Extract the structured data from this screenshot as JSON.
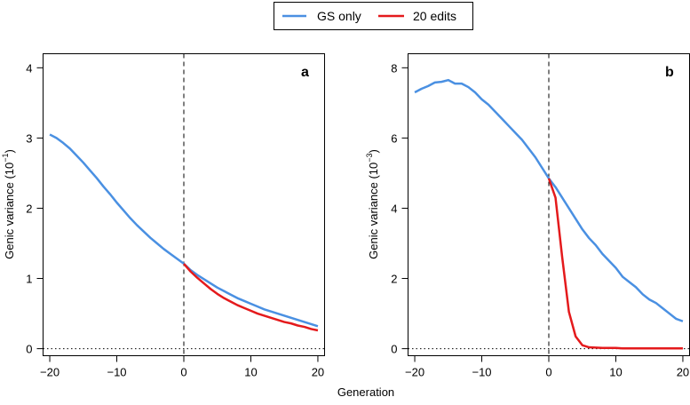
{
  "legend": {
    "entries": [
      {
        "label": "GS only",
        "color": "#4a90e2"
      },
      {
        "label": "20 edits",
        "color": "#e41a1c"
      }
    ]
  },
  "shared_xlabel": "Generation",
  "chart_data": [
    {
      "type": "line",
      "panel": "a",
      "ylabel": "Genic variance (10",
      "ylabel_exp": "−1",
      "ylabel_close": ")",
      "xlim": [
        -21,
        21
      ],
      "ylim": [
        -0.1,
        4.2
      ],
      "xticks": [
        -20,
        -10,
        0,
        10,
        20
      ],
      "xtick_labels": [
        "−20",
        "−10",
        "0",
        "10",
        "20"
      ],
      "yticks": [
        0,
        1,
        2,
        3,
        4
      ],
      "ytick_labels": [
        "0",
        "1",
        "2",
        "3",
        "4"
      ],
      "vline_x": 0,
      "hline_y": 0,
      "series": [
        {
          "name": "GS only",
          "color": "#4a90e2",
          "x": [
            -20,
            -19,
            -18,
            -17,
            -16,
            -15,
            -14,
            -13,
            -12,
            -11,
            -10,
            -9,
            -8,
            -7,
            -6,
            -5,
            -4,
            -3,
            -2,
            -1,
            0,
            1,
            2,
            3,
            4,
            5,
            6,
            7,
            8,
            9,
            10,
            11,
            12,
            13,
            14,
            15,
            16,
            17,
            18,
            19,
            20
          ],
          "y": [
            3.05,
            3.0,
            2.93,
            2.85,
            2.75,
            2.65,
            2.54,
            2.43,
            2.31,
            2.2,
            2.08,
            1.97,
            1.86,
            1.76,
            1.67,
            1.58,
            1.5,
            1.42,
            1.35,
            1.28,
            1.21,
            1.12,
            1.05,
            0.99,
            0.93,
            0.87,
            0.82,
            0.77,
            0.72,
            0.68,
            0.64,
            0.6,
            0.56,
            0.53,
            0.5,
            0.47,
            0.44,
            0.41,
            0.38,
            0.35,
            0.32
          ]
        },
        {
          "name": "20 edits",
          "color": "#e41a1c",
          "x": [
            0,
            1,
            2,
            3,
            4,
            5,
            6,
            7,
            8,
            9,
            10,
            11,
            12,
            13,
            14,
            15,
            16,
            17,
            18,
            19,
            20
          ],
          "y": [
            1.21,
            1.1,
            1.01,
            0.93,
            0.85,
            0.78,
            0.72,
            0.67,
            0.62,
            0.58,
            0.54,
            0.5,
            0.47,
            0.44,
            0.41,
            0.38,
            0.36,
            0.33,
            0.31,
            0.28,
            0.26
          ]
        }
      ]
    },
    {
      "type": "line",
      "panel": "b",
      "ylabel": "Genic variance (10",
      "ylabel_exp": "−3",
      "ylabel_close": ")",
      "xlim": [
        -21,
        21
      ],
      "ylim": [
        -0.2,
        8.4
      ],
      "xticks": [
        -20,
        -10,
        0,
        10,
        20
      ],
      "xtick_labels": [
        "−20",
        "−10",
        "0",
        "10",
        "20"
      ],
      "yticks": [
        0,
        2,
        4,
        6,
        8
      ],
      "ytick_labels": [
        "0",
        "2",
        "4",
        "6",
        "8"
      ],
      "vline_x": 0,
      "hline_y": 0,
      "series": [
        {
          "name": "GS only",
          "color": "#4a90e2",
          "x": [
            -20,
            -19,
            -18,
            -17,
            -16,
            -15,
            -14,
            -13,
            -12,
            -11,
            -10,
            -9,
            -8,
            -7,
            -6,
            -5,
            -4,
            -3,
            -2,
            -1,
            0,
            1,
            2,
            3,
            4,
            5,
            6,
            7,
            8,
            9,
            10,
            11,
            12,
            13,
            14,
            15,
            16,
            17,
            18,
            19,
            20
          ],
          "y": [
            7.3,
            7.4,
            7.48,
            7.58,
            7.6,
            7.65,
            7.55,
            7.55,
            7.45,
            7.3,
            7.1,
            6.95,
            6.75,
            6.55,
            6.35,
            6.15,
            5.95,
            5.7,
            5.45,
            5.15,
            4.85,
            4.6,
            4.3,
            4.0,
            3.7,
            3.4,
            3.15,
            2.95,
            2.7,
            2.5,
            2.3,
            2.05,
            1.9,
            1.75,
            1.55,
            1.4,
            1.3,
            1.15,
            1.0,
            0.85,
            0.78
          ]
        },
        {
          "name": "20 edits",
          "color": "#e41a1c",
          "x": [
            0,
            1,
            2,
            3,
            4,
            5,
            6,
            7,
            8,
            9,
            10,
            11,
            12,
            13,
            14,
            15,
            16,
            17,
            18,
            19,
            20
          ],
          "y": [
            4.85,
            4.3,
            2.6,
            1.05,
            0.35,
            0.1,
            0.04,
            0.03,
            0.02,
            0.02,
            0.02,
            0.01,
            0.01,
            0.01,
            0.01,
            0.01,
            0.01,
            0.01,
            0.01,
            0.01,
            0.01
          ]
        }
      ]
    }
  ]
}
